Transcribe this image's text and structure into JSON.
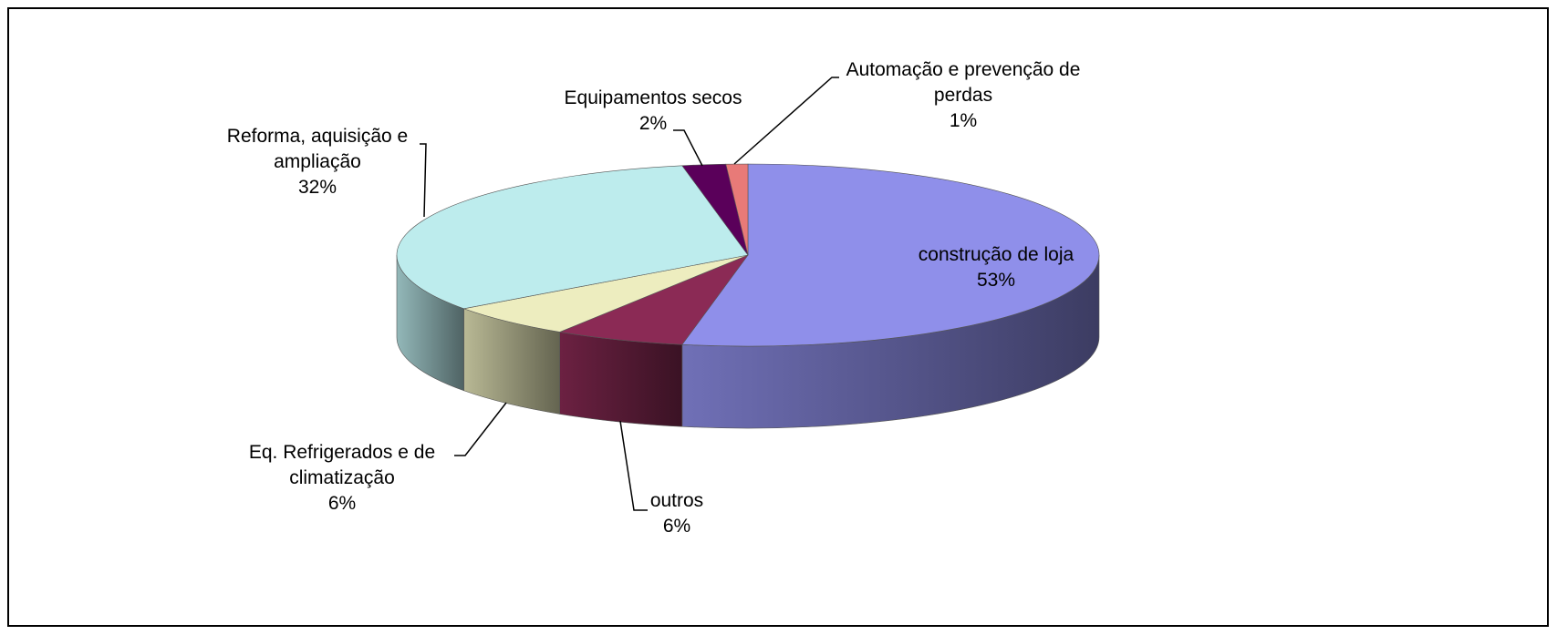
{
  "chart_data": {
    "type": "pie3d",
    "categories": [
      "construção de loja",
      "outros",
      "Eq. Refrigerados e de climatização",
      "Reforma, aquisição e ampliação",
      "Equipamentos secos",
      "Automação e prevenção de perdas"
    ],
    "values": [
      53,
      6,
      6,
      32,
      2,
      1
    ],
    "value_labels": [
      "53%",
      "6%",
      "6%",
      "32%",
      "2%",
      "1%"
    ],
    "colors": [
      "#8f8fea",
      "#8b2a55",
      "#ededbf",
      "#bdeced",
      "#5a005a",
      "#e87a78"
    ]
  }
}
